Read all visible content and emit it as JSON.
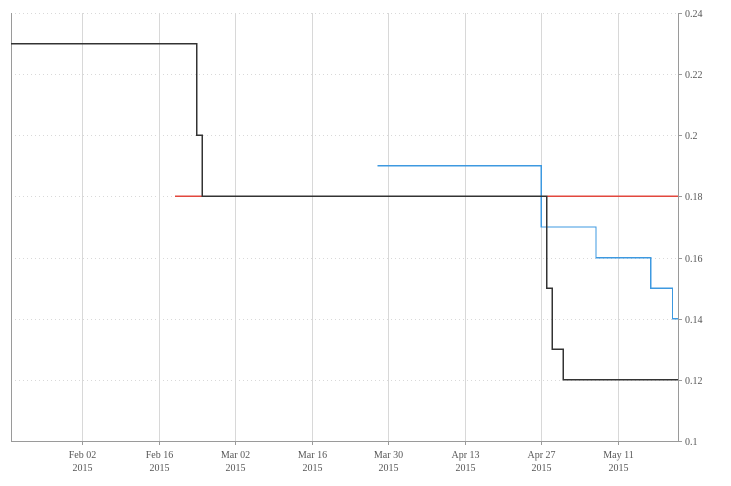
{
  "chart_data": {
    "type": "line",
    "step": true,
    "title": "",
    "xlabel": "",
    "ylabel": "",
    "grid": true,
    "legend": "none",
    "x_range": [
      "2015-01-20",
      "2015-05-22"
    ],
    "ylim": [
      0.1,
      0.24
    ],
    "y_ticks": [
      0.1,
      0.12,
      0.14,
      0.16,
      0.18,
      0.2,
      0.22,
      0.24
    ],
    "y_tick_labels": [
      "0.1",
      "0.12",
      "0.14",
      "0.16",
      "0.18",
      "0.2",
      "0.22",
      "0.24"
    ],
    "x_ticks": [
      {
        "date": "2015-02-02",
        "label": "Feb 02",
        "year": "2015"
      },
      {
        "date": "2015-02-16",
        "label": "Feb 16",
        "year": "2015"
      },
      {
        "date": "2015-03-02",
        "label": "Mar 02",
        "year": "2015"
      },
      {
        "date": "2015-03-16",
        "label": "Mar 16",
        "year": "2015"
      },
      {
        "date": "2015-03-30",
        "label": "Mar 30",
        "year": "2015"
      },
      {
        "date": "2015-04-13",
        "label": "Apr 13",
        "year": "2015"
      },
      {
        "date": "2015-04-27",
        "label": "Apr 27",
        "year": "2015"
      },
      {
        "date": "2015-05-11",
        "label": "May 11",
        "year": "2015"
      }
    ],
    "series": [
      {
        "color": "#e2473d",
        "points": [
          {
            "x": "2015-02-19",
            "y": 0.18
          },
          {
            "x": "2015-05-22",
            "y": 0.18
          }
        ]
      },
      {
        "color": "#3d99e0",
        "points": [
          {
            "x": "2015-03-28",
            "y": 0.19
          },
          {
            "x": "2015-04-27",
            "y": 0.17
          },
          {
            "x": "2015-05-07",
            "y": 0.16
          },
          {
            "x": "2015-05-17",
            "y": 0.15
          },
          {
            "x": "2015-05-21",
            "y": 0.14
          },
          {
            "x": "2015-05-22",
            "y": 0.14
          }
        ]
      },
      {
        "color": "#333333",
        "points": [
          {
            "x": "2015-01-20",
            "y": 0.23
          },
          {
            "x": "2015-02-23",
            "y": 0.2
          },
          {
            "x": "2015-02-24",
            "y": 0.18
          },
          {
            "x": "2015-04-28",
            "y": 0.15
          },
          {
            "x": "2015-04-29",
            "y": 0.13
          },
          {
            "x": "2015-05-01",
            "y": 0.12
          },
          {
            "x": "2015-05-22",
            "y": 0.12
          }
        ]
      }
    ]
  }
}
